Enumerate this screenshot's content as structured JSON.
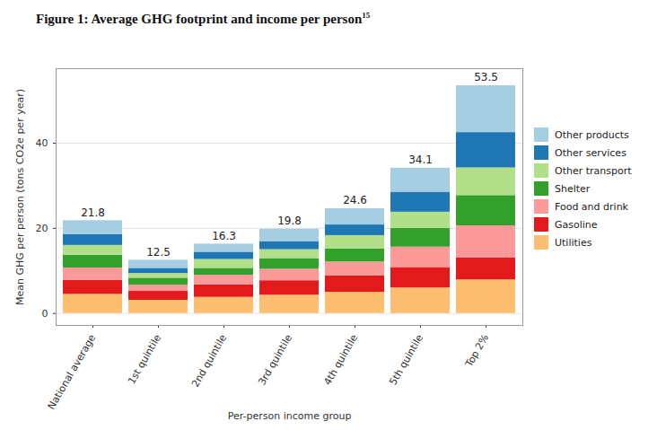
{
  "chart_data": {
    "type": "bar",
    "title": "Figure 1: Average GHG footprint and income per person15",
    "xlabel": "Per-person income group",
    "ylabel": "Mean GHG per person (tons CO2e per year)",
    "categories": [
      "National average",
      "1st quintile",
      "2nd quintile",
      "3rd quintile",
      "4th quintile",
      "5th quintile",
      "Top 2%"
    ],
    "series": [
      {
        "name": "Utilities",
        "color": "#fdbf6f",
        "values": [
          4.5,
          3.1,
          3.8,
          4.3,
          5.0,
          6.0,
          7.9
        ]
      },
      {
        "name": "Gasoline",
        "color": "#e31a1c",
        "values": [
          3.3,
          2.1,
          2.9,
          3.4,
          3.8,
          4.8,
          5.2
        ]
      },
      {
        "name": "Food and drink",
        "color": "#fb9a99",
        "values": [
          2.9,
          1.5,
          2.3,
          2.7,
          3.3,
          4.8,
          7.5
        ]
      },
      {
        "name": "Shelter",
        "color": "#33a02c",
        "values": [
          3.0,
          1.6,
          1.6,
          2.5,
          3.1,
          4.4,
          7.1
        ]
      },
      {
        "name": "Other transport",
        "color": "#b2df8a",
        "values": [
          2.3,
          1.1,
          2.1,
          2.1,
          3.1,
          3.8,
          6.5
        ]
      },
      {
        "name": "Other services",
        "color": "#1f78b4",
        "values": [
          2.5,
          1.2,
          1.7,
          1.9,
          2.5,
          4.7,
          8.3
        ]
      },
      {
        "name": "Other products",
        "color": "#a6cee3",
        "values": [
          3.3,
          1.9,
          1.9,
          2.9,
          3.8,
          5.6,
          11.0
        ]
      }
    ],
    "totals": [
      21.8,
      12.5,
      16.3,
      19.8,
      24.6,
      34.1,
      53.5
    ],
    "stacked": true,
    "ylim": [
      -2.8,
      57.5
    ],
    "yticks": [
      0,
      20,
      40
    ],
    "grid": true,
    "legend": "right"
  }
}
